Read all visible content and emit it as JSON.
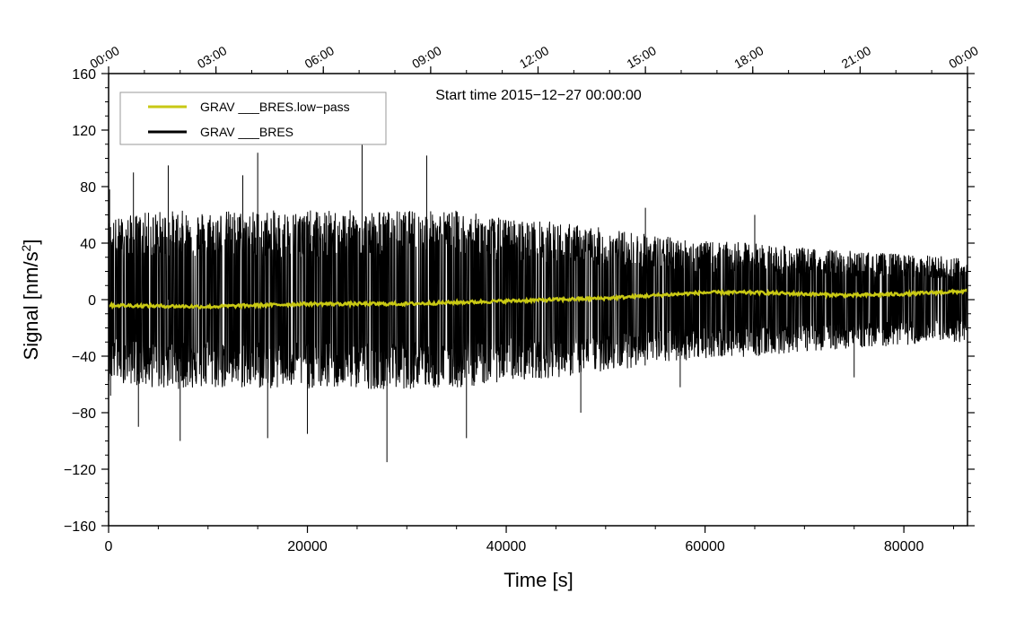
{
  "chart_data": {
    "type": "line",
    "annotation": "Start time 2015−12−27 00:00:00",
    "xlabel": "Time [s]",
    "ylabel": {
      "main": "Signal [nm/s",
      "sup": "2",
      "close": "]"
    },
    "xlim": [
      0,
      86400
    ],
    "ylim": [
      -160,
      160
    ],
    "x_ticks": [
      0,
      20000,
      40000,
      60000,
      80000
    ],
    "x_tick_labels": [
      "0",
      "20000",
      "40000",
      "60000",
      "80000"
    ],
    "y_ticks": [
      -160,
      -120,
      -80,
      -40,
      0,
      40,
      80,
      120,
      160
    ],
    "y_tick_labels": [
      "−160",
      "−120",
      "−80",
      "−40",
      "0",
      "40",
      "80",
      "120",
      "160"
    ],
    "top_axis": {
      "ticks": [
        0,
        10800,
        21600,
        32400,
        43200,
        54000,
        64800,
        75600,
        86400
      ],
      "labels": [
        "00:00",
        "03:00",
        "06:00",
        "09:00",
        "12:00",
        "15:00",
        "18:00",
        "21:00",
        "00:00"
      ]
    },
    "legend": {
      "placement": "top-left",
      "entries": [
        "GRAV ___BRES.low−pass",
        "GRAV ___BRES"
      ]
    },
    "grid": false,
    "series": [
      {
        "name": "GRAV ___BRES",
        "color": "#000000",
        "kind": "noise-envelope",
        "x": [
          0,
          5000,
          10000,
          15000,
          20000,
          25000,
          30000,
          35000,
          40000,
          45000,
          50000,
          55000,
          60000,
          65000,
          70000,
          75000,
          80000,
          86400
        ],
        "upper": [
          50,
          55,
          55,
          55,
          55,
          55,
          55,
          55,
          50,
          48,
          44,
          40,
          36,
          35,
          32,
          30,
          28,
          26
        ],
        "lower": [
          -50,
          -55,
          -55,
          -55,
          -55,
          -55,
          -55,
          -55,
          -50,
          -48,
          -44,
          -40,
          -36,
          -35,
          -32,
          -30,
          -28,
          -26
        ],
        "spikes": [
          {
            "x": 100,
            "y": 78
          },
          {
            "x": 200,
            "y": -68
          },
          {
            "x": 2500,
            "y": 90
          },
          {
            "x": 3000,
            "y": -90
          },
          {
            "x": 6000,
            "y": 95
          },
          {
            "x": 7200,
            "y": -100
          },
          {
            "x": 13500,
            "y": 88
          },
          {
            "x": 15000,
            "y": 104
          },
          {
            "x": 16000,
            "y": -98
          },
          {
            "x": 20000,
            "y": -95
          },
          {
            "x": 25500,
            "y": 110
          },
          {
            "x": 28000,
            "y": -115
          },
          {
            "x": 32000,
            "y": 102
          },
          {
            "x": 36000,
            "y": -98
          },
          {
            "x": 47500,
            "y": -80
          },
          {
            "x": 54000,
            "y": 65
          },
          {
            "x": 57500,
            "y": -62
          },
          {
            "x": 65000,
            "y": 60
          },
          {
            "x": 75000,
            "y": -55
          }
        ]
      },
      {
        "name": "GRAV ___BRES.low−pass",
        "color": "#c8c814",
        "x": [
          0,
          10000,
          20000,
          30000,
          40000,
          50000,
          55000,
          60000,
          65000,
          70000,
          75000,
          80000,
          86400
        ],
        "y": [
          -4,
          -5,
          -3,
          -3,
          -1,
          1,
          3,
          5,
          5,
          4,
          3,
          4,
          6
        ]
      }
    ]
  }
}
